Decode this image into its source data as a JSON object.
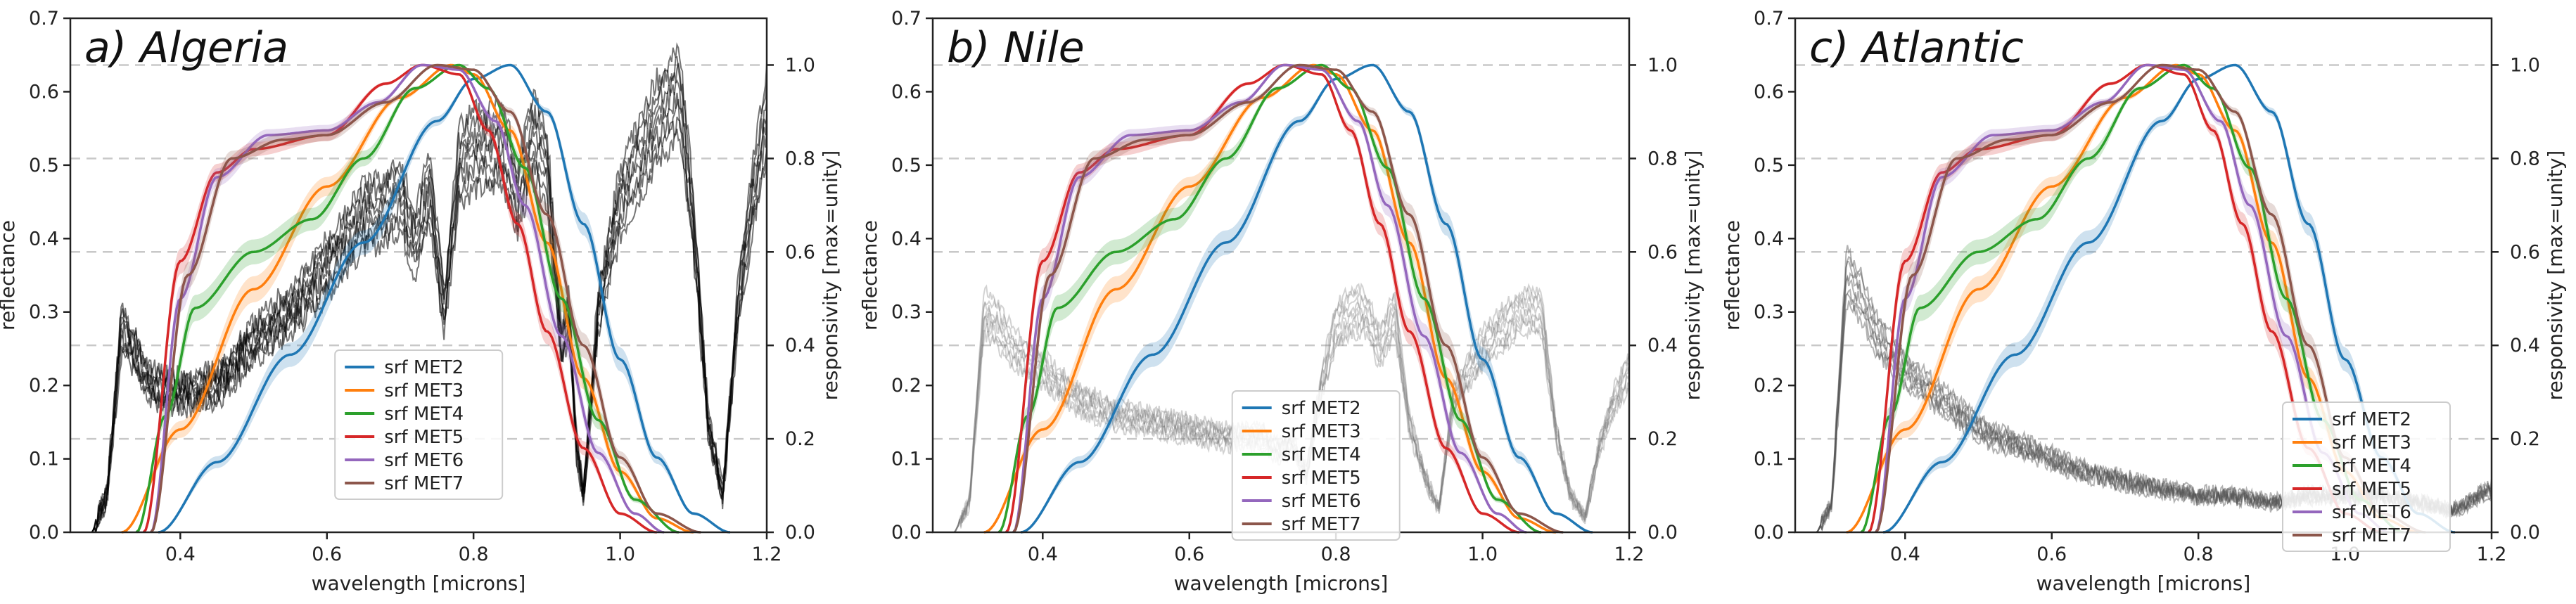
{
  "figure": {
    "panels": [
      {
        "id": "a",
        "title": "a) Algeria"
      },
      {
        "id": "b",
        "title": "b) Nile"
      },
      {
        "id": "c",
        "title": "c) Atlantic"
      }
    ]
  },
  "chart_data": [
    {
      "type": "line",
      "title": "a) Algeria",
      "xlabel": "wavelength [microns]",
      "ylabel": "reflectance",
      "y2label": "responsivity [max=unity]",
      "xlim": [
        0.25,
        1.2
      ],
      "ylim": [
        0,
        0.7
      ],
      "y2lim": [
        0,
        1.1
      ],
      "xticks": [
        "0.4",
        "0.6",
        "0.8",
        "1.0",
        "1.2"
      ],
      "yticks": [
        "0.0",
        "0.1",
        "0.2",
        "0.3",
        "0.4",
        "0.5",
        "0.6",
        "0.7"
      ],
      "y2ticks": [
        "0.0",
        "0.2",
        "0.4",
        "0.6",
        "0.8",
        "1.0"
      ],
      "grid": "dashed horizontal at right-axis ticks",
      "legend": {
        "position": "lower-center",
        "entries": [
          "srf MET2",
          "srf MET3",
          "srf MET4",
          "srf MET5",
          "srf MET6",
          "srf MET7"
        ]
      },
      "series": [
        {
          "name": "srf MET2",
          "color": "#1f77b4",
          "x": [
            0.37,
            0.45,
            0.55,
            0.65,
            0.75,
            0.8,
            0.85,
            0.9,
            0.95,
            1.0,
            1.05,
            1.1,
            1.15
          ],
          "y": [
            0,
            0.15,
            0.38,
            0.62,
            0.88,
            0.97,
            1.0,
            0.9,
            0.66,
            0.37,
            0.16,
            0.04,
            0
          ]
        },
        {
          "name": "srf MET3",
          "color": "#ff7f0e",
          "x": [
            0.32,
            0.4,
            0.5,
            0.6,
            0.7,
            0.77,
            0.8,
            0.85,
            0.9,
            0.95,
            1.0,
            1.05,
            1.1
          ],
          "y": [
            0,
            0.22,
            0.52,
            0.74,
            0.93,
            1.0,
            0.98,
            0.86,
            0.62,
            0.33,
            0.13,
            0.03,
            0
          ]
        },
        {
          "name": "srf MET4",
          "color": "#2ca02c",
          "x": [
            0.34,
            0.38,
            0.42,
            0.5,
            0.58,
            0.65,
            0.72,
            0.78,
            0.82,
            0.87,
            0.92,
            0.97,
            1.02,
            1.08
          ],
          "y": [
            0,
            0.25,
            0.48,
            0.6,
            0.67,
            0.8,
            0.95,
            1.0,
            0.95,
            0.78,
            0.5,
            0.24,
            0.07,
            0
          ]
        },
        {
          "name": "srf MET5",
          "color": "#d62728",
          "x": [
            0.35,
            0.4,
            0.45,
            0.5,
            0.6,
            0.68,
            0.73,
            0.78,
            0.82,
            0.86,
            0.9,
            0.95,
            1.0,
            1.05
          ],
          "y": [
            0,
            0.58,
            0.77,
            0.82,
            0.85,
            0.96,
            1.0,
            0.98,
            0.86,
            0.66,
            0.43,
            0.18,
            0.04,
            0
          ]
        },
        {
          "name": "srf MET6",
          "color": "#9467bd",
          "x": [
            0.36,
            0.4,
            0.45,
            0.52,
            0.6,
            0.67,
            0.73,
            0.78,
            0.83,
            0.87,
            0.92,
            0.97,
            1.02,
            1.06
          ],
          "y": [
            0,
            0.5,
            0.76,
            0.85,
            0.86,
            0.92,
            1.0,
            0.99,
            0.88,
            0.7,
            0.42,
            0.17,
            0.04,
            0
          ]
        },
        {
          "name": "srf MET7",
          "color": "#8c564b",
          "x": [
            0.36,
            0.41,
            0.47,
            0.54,
            0.6,
            0.68,
            0.75,
            0.8,
            0.85,
            0.9,
            0.95,
            1.0,
            1.05,
            1.11
          ],
          "y": [
            0,
            0.55,
            0.8,
            0.84,
            0.85,
            0.92,
            1.0,
            0.99,
            0.9,
            0.68,
            0.4,
            0.16,
            0.04,
            0
          ]
        }
      ],
      "spectra": {
        "color": "#000000",
        "alpha": 0.9,
        "x": [
          0.25,
          0.28,
          0.3,
          0.32,
          0.34,
          0.36,
          0.4,
          0.45,
          0.5,
          0.55,
          0.6,
          0.65,
          0.68,
          0.7,
          0.72,
          0.74,
          0.76,
          0.78,
          0.8,
          0.82,
          0.84,
          0.86,
          0.88,
          0.9,
          0.92,
          0.93,
          0.94,
          0.95,
          0.97,
          1.0,
          1.05,
          1.08,
          1.1,
          1.12,
          1.14,
          1.16,
          1.18,
          1.2
        ],
        "y": [
          0,
          0,
          0.05,
          0.28,
          0.24,
          0.2,
          0.19,
          0.2,
          0.26,
          0.3,
          0.36,
          0.43,
          0.44,
          0.46,
          0.39,
          0.47,
          0.3,
          0.5,
          0.52,
          0.52,
          0.53,
          0.45,
          0.54,
          0.5,
          0.25,
          0.3,
          0.12,
          0.05,
          0.3,
          0.45,
          0.56,
          0.6,
          0.42,
          0.15,
          0.05,
          0.3,
          0.45,
          0.57
        ]
      }
    },
    {
      "type": "line",
      "title": "b) Nile",
      "xlabel": "wavelength [microns]",
      "ylabel": "reflectance",
      "y2label": "responsivity [max=unity]",
      "xlim": [
        0.25,
        1.2
      ],
      "ylim": [
        0,
        0.7
      ],
      "y2lim": [
        0,
        1.1
      ],
      "xticks": [
        "0.4",
        "0.6",
        "0.8",
        "1.0",
        "1.2"
      ],
      "yticks": [
        "0.0",
        "0.1",
        "0.2",
        "0.3",
        "0.4",
        "0.5",
        "0.6",
        "0.7"
      ],
      "y2ticks": [
        "0.0",
        "0.2",
        "0.4",
        "0.6",
        "0.8",
        "1.0"
      ],
      "grid": "dashed horizontal at right-axis ticks",
      "legend": {
        "position": "lower-center",
        "entries": [
          "srf MET2",
          "srf MET3",
          "srf MET4",
          "srf MET5",
          "srf MET6",
          "srf MET7"
        ]
      },
      "series": [
        {
          "name": "srf MET2",
          "color": "#1f77b4",
          "x": [
            0.37,
            0.45,
            0.55,
            0.65,
            0.75,
            0.8,
            0.85,
            0.9,
            0.95,
            1.0,
            1.05,
            1.1,
            1.15
          ],
          "y": [
            0,
            0.15,
            0.38,
            0.62,
            0.88,
            0.97,
            1.0,
            0.9,
            0.66,
            0.37,
            0.16,
            0.04,
            0
          ]
        },
        {
          "name": "srf MET3",
          "color": "#ff7f0e",
          "x": [
            0.32,
            0.4,
            0.5,
            0.6,
            0.7,
            0.77,
            0.8,
            0.85,
            0.9,
            0.95,
            1.0,
            1.05,
            1.1
          ],
          "y": [
            0,
            0.22,
            0.52,
            0.74,
            0.93,
            1.0,
            0.98,
            0.86,
            0.62,
            0.33,
            0.13,
            0.03,
            0
          ]
        },
        {
          "name": "srf MET4",
          "color": "#2ca02c",
          "x": [
            0.34,
            0.38,
            0.42,
            0.5,
            0.58,
            0.65,
            0.72,
            0.78,
            0.82,
            0.87,
            0.92,
            0.97,
            1.02,
            1.08
          ],
          "y": [
            0,
            0.25,
            0.48,
            0.6,
            0.67,
            0.8,
            0.95,
            1.0,
            0.95,
            0.78,
            0.5,
            0.24,
            0.07,
            0
          ]
        },
        {
          "name": "srf MET5",
          "color": "#d62728",
          "x": [
            0.35,
            0.4,
            0.45,
            0.5,
            0.6,
            0.68,
            0.73,
            0.78,
            0.82,
            0.86,
            0.9,
            0.95,
            1.0,
            1.05
          ],
          "y": [
            0,
            0.58,
            0.77,
            0.82,
            0.85,
            0.96,
            1.0,
            0.98,
            0.86,
            0.66,
            0.43,
            0.18,
            0.04,
            0
          ]
        },
        {
          "name": "srf MET6",
          "color": "#9467bd",
          "x": [
            0.36,
            0.4,
            0.45,
            0.52,
            0.6,
            0.67,
            0.73,
            0.78,
            0.83,
            0.87,
            0.92,
            0.97,
            1.02,
            1.06
          ],
          "y": [
            0,
            0.5,
            0.76,
            0.85,
            0.86,
            0.92,
            1.0,
            0.99,
            0.88,
            0.7,
            0.42,
            0.17,
            0.04,
            0
          ]
        },
        {
          "name": "srf MET7",
          "color": "#8c564b",
          "x": [
            0.36,
            0.41,
            0.47,
            0.54,
            0.6,
            0.68,
            0.75,
            0.8,
            0.85,
            0.9,
            0.95,
            1.0,
            1.05,
            1.11
          ],
          "y": [
            0,
            0.55,
            0.8,
            0.84,
            0.85,
            0.92,
            1.0,
            0.99,
            0.9,
            0.68,
            0.4,
            0.16,
            0.04,
            0
          ]
        }
      ],
      "spectra": {
        "color": "#777777",
        "alpha": 0.55,
        "x": [
          0.25,
          0.28,
          0.3,
          0.32,
          0.34,
          0.36,
          0.4,
          0.45,
          0.5,
          0.55,
          0.6,
          0.65,
          0.7,
          0.72,
          0.74,
          0.76,
          0.78,
          0.8,
          0.82,
          0.84,
          0.86,
          0.88,
          0.9,
          0.92,
          0.94,
          0.96,
          1.0,
          1.05,
          1.08,
          1.1,
          1.12,
          1.14,
          1.16,
          1.18,
          1.2
        ],
        "y": [
          0,
          0,
          0.04,
          0.3,
          0.28,
          0.25,
          0.22,
          0.18,
          0.16,
          0.15,
          0.14,
          0.13,
          0.13,
          0.11,
          0.12,
          0.08,
          0.2,
          0.28,
          0.3,
          0.3,
          0.25,
          0.3,
          0.15,
          0.08,
          0.03,
          0.18,
          0.25,
          0.3,
          0.3,
          0.14,
          0.05,
          0.02,
          0.12,
          0.18,
          0.22
        ]
      }
    },
    {
      "type": "line",
      "title": "c) Atlantic",
      "xlabel": "wavelength [microns]",
      "ylabel": "reflectance",
      "y2label": "responsivity [max=unity]",
      "xlim": [
        0.25,
        1.2
      ],
      "ylim": [
        0,
        0.7
      ],
      "y2lim": [
        0,
        1.1
      ],
      "xticks": [
        "0.4",
        "0.6",
        "0.8",
        "1.0",
        "1.2"
      ],
      "yticks": [
        "0.0",
        "0.1",
        "0.2",
        "0.3",
        "0.4",
        "0.5",
        "0.6",
        "0.7"
      ],
      "y2ticks": [
        "0.0",
        "0.2",
        "0.4",
        "0.6",
        "0.8",
        "1.0"
      ],
      "grid": "dashed horizontal at right-axis ticks",
      "legend": {
        "position": "lower-center",
        "entries": [
          "srf MET2",
          "srf MET3",
          "srf MET4",
          "srf MET5",
          "srf MET6",
          "srf MET7"
        ]
      },
      "series": [
        {
          "name": "srf MET2",
          "color": "#1f77b4",
          "x": [
            0.37,
            0.45,
            0.55,
            0.65,
            0.75,
            0.8,
            0.85,
            0.9,
            0.95,
            1.0,
            1.05,
            1.1,
            1.15
          ],
          "y": [
            0,
            0.15,
            0.38,
            0.62,
            0.88,
            0.97,
            1.0,
            0.9,
            0.66,
            0.37,
            0.16,
            0.04,
            0
          ]
        },
        {
          "name": "srf MET3",
          "color": "#ff7f0e",
          "x": [
            0.32,
            0.4,
            0.5,
            0.6,
            0.7,
            0.77,
            0.8,
            0.85,
            0.9,
            0.95,
            1.0,
            1.05,
            1.1
          ],
          "y": [
            0,
            0.22,
            0.52,
            0.74,
            0.93,
            1.0,
            0.98,
            0.86,
            0.62,
            0.33,
            0.13,
            0.03,
            0
          ]
        },
        {
          "name": "srf MET4",
          "color": "#2ca02c",
          "x": [
            0.34,
            0.38,
            0.42,
            0.5,
            0.58,
            0.65,
            0.72,
            0.78,
            0.82,
            0.87,
            0.92,
            0.97,
            1.02,
            1.08
          ],
          "y": [
            0,
            0.25,
            0.48,
            0.6,
            0.67,
            0.8,
            0.95,
            1.0,
            0.95,
            0.78,
            0.5,
            0.24,
            0.07,
            0
          ]
        },
        {
          "name": "srf MET5",
          "color": "#d62728",
          "x": [
            0.35,
            0.4,
            0.45,
            0.5,
            0.6,
            0.68,
            0.73,
            0.78,
            0.82,
            0.86,
            0.9,
            0.95,
            1.0,
            1.05
          ],
          "y": [
            0,
            0.58,
            0.77,
            0.82,
            0.85,
            0.96,
            1.0,
            0.98,
            0.86,
            0.66,
            0.43,
            0.18,
            0.04,
            0
          ]
        },
        {
          "name": "srf MET6",
          "color": "#9467bd",
          "x": [
            0.36,
            0.4,
            0.45,
            0.52,
            0.6,
            0.67,
            0.73,
            0.78,
            0.83,
            0.87,
            0.92,
            0.97,
            1.02,
            1.06
          ],
          "y": [
            0,
            0.5,
            0.76,
            0.85,
            0.86,
            0.92,
            1.0,
            0.99,
            0.88,
            0.7,
            0.42,
            0.17,
            0.04,
            0
          ]
        },
        {
          "name": "srf MET7",
          "color": "#8c564b",
          "x": [
            0.36,
            0.41,
            0.47,
            0.54,
            0.6,
            0.68,
            0.75,
            0.8,
            0.85,
            0.9,
            0.95,
            1.0,
            1.05,
            1.11
          ],
          "y": [
            0,
            0.55,
            0.8,
            0.84,
            0.85,
            0.92,
            1.0,
            0.99,
            0.9,
            0.68,
            0.4,
            0.16,
            0.04,
            0
          ]
        }
      ],
      "spectra": {
        "color": "#555555",
        "alpha": 0.75,
        "x": [
          0.25,
          0.28,
          0.3,
          0.32,
          0.34,
          0.36,
          0.4,
          0.45,
          0.5,
          0.55,
          0.6,
          0.65,
          0.7,
          0.75,
          0.8,
          0.85,
          0.9,
          0.95,
          1.0,
          1.05,
          1.1,
          1.15,
          1.2
        ],
        "y": [
          0,
          0,
          0.04,
          0.35,
          0.32,
          0.27,
          0.22,
          0.18,
          0.14,
          0.12,
          0.1,
          0.08,
          0.07,
          0.06,
          0.05,
          0.05,
          0.04,
          0.05,
          0.05,
          0.05,
          0.04,
          0.03,
          0.06
        ]
      }
    }
  ]
}
